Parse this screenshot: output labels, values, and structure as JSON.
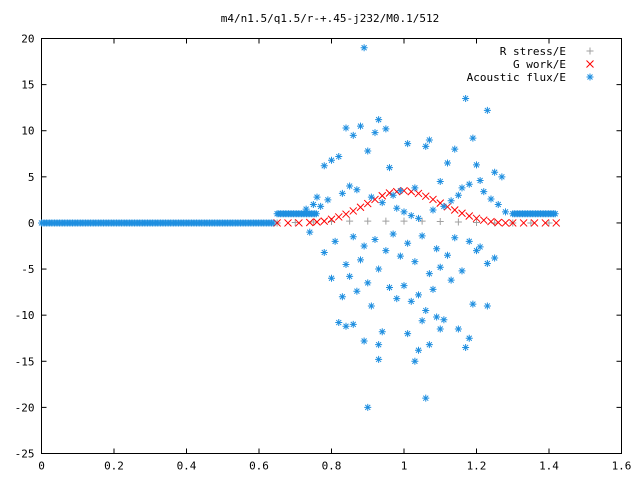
{
  "chart_data": {
    "type": "scatter",
    "title": "m4/n1.5/q1.5/r-+.45-j232/M0.1/512",
    "xlabel": "",
    "ylabel": "",
    "xlim": [
      0,
      1.6
    ],
    "ylim": [
      -25,
      20
    ],
    "xticks": [
      "0",
      "0.2",
      "0.4",
      "0.6",
      "0.8",
      "1",
      "1.2",
      "1.4",
      "1.6"
    ],
    "yticks": [
      "20",
      "15",
      "10",
      "5",
      "0",
      "-5",
      "-10",
      "-15",
      "-20",
      "-25"
    ],
    "grid": false,
    "legend_position": "top-right",
    "series": [
      {
        "name": "R stress/E",
        "marker": "+",
        "color": "#a0a0a0",
        "x": [
          0.65,
          0.7,
          0.75,
          0.8,
          0.85,
          0.9,
          0.95,
          1.0,
          1.05,
          1.1,
          1.15,
          1.2,
          1.25,
          1.3,
          1.35,
          1.4
        ],
        "y": [
          0.0,
          0.05,
          0.1,
          0.15,
          0.2,
          0.2,
          0.2,
          0.2,
          0.2,
          0.15,
          0.1,
          0.05,
          0.0,
          0.0,
          0.0,
          0.0
        ]
      },
      {
        "name": "G work/E",
        "marker": "x",
        "color": "#ff0000",
        "x": [
          0.65,
          0.68,
          0.71,
          0.74,
          0.76,
          0.78,
          0.8,
          0.82,
          0.84,
          0.86,
          0.88,
          0.9,
          0.92,
          0.94,
          0.96,
          0.98,
          1.0,
          1.02,
          1.04,
          1.06,
          1.08,
          1.1,
          1.12,
          1.14,
          1.16,
          1.18,
          1.2,
          1.22,
          1.24,
          1.26,
          1.28,
          1.3,
          1.33,
          1.36,
          1.39,
          1.42
        ],
        "y": [
          0.0,
          0.0,
          0.0,
          0.05,
          0.1,
          0.2,
          0.4,
          0.65,
          0.95,
          1.3,
          1.7,
          2.1,
          2.55,
          2.95,
          3.25,
          3.4,
          3.5,
          3.4,
          3.2,
          2.9,
          2.55,
          2.15,
          1.75,
          1.4,
          1.05,
          0.75,
          0.5,
          0.3,
          0.15,
          0.05,
          0.0,
          0.0,
          0.0,
          0.0,
          0.0,
          0.0
        ]
      },
      {
        "name": "Acoustic flux/E",
        "marker": "*",
        "color": "#1f8fe0",
        "baseline_left": {
          "x_range": [
            0,
            0.64
          ],
          "y": 0
        },
        "plateau_left": {
          "x_range": [
            0.65,
            0.76
          ],
          "y": 1.0
        },
        "plateau_right": {
          "x_range": [
            1.3,
            1.42
          ],
          "y": 1.0
        },
        "x": [
          0.89,
          1.17,
          1.23,
          0.93,
          0.88,
          0.95,
          0.92,
          0.84,
          0.86,
          1.19,
          1.07,
          1.06,
          1.01,
          1.14,
          0.9,
          0.82,
          0.78,
          0.8,
          0.96,
          1.12,
          1.2,
          1.25,
          1.27,
          1.1,
          1.03,
          0.99,
          0.97,
          0.85,
          0.76,
          0.75,
          0.73,
          0.77,
          0.79,
          0.83,
          0.87,
          0.91,
          0.94,
          0.98,
          1.0,
          1.02,
          1.04,
          1.08,
          1.11,
          1.13,
          1.15,
          1.16,
          1.18,
          1.21,
          1.22,
          1.24,
          1.26,
          1.28,
          0.74,
          0.81,
          0.86,
          0.89,
          0.92,
          0.95,
          0.97,
          1.01,
          1.05,
          1.09,
          1.12,
          1.14,
          1.18,
          1.21,
          1.25,
          0.78,
          0.84,
          0.88,
          0.93,
          0.99,
          1.03,
          1.07,
          1.1,
          1.16,
          1.2,
          1.23,
          0.8,
          0.85,
          0.9,
          0.96,
          1.0,
          1.04,
          1.08,
          1.13,
          1.19,
          0.83,
          0.87,
          0.91,
          0.98,
          1.02,
          1.06,
          1.11,
          1.15,
          0.82,
          0.86,
          0.94,
          1.01,
          1.05,
          1.09,
          1.18,
          0.84,
          0.89,
          0.93,
          1.03,
          1.07,
          1.17,
          1.06,
          0.9,
          0.93,
          1.04,
          1.1,
          1.23
        ],
        "y": [
          19.0,
          13.5,
          12.2,
          11.2,
          10.5,
          10.2,
          9.8,
          10.3,
          9.5,
          9.2,
          9.0,
          8.3,
          8.6,
          8.0,
          7.8,
          7.2,
          6.2,
          6.8,
          6.0,
          6.5,
          6.3,
          5.5,
          5.0,
          4.5,
          3.8,
          3.5,
          3.0,
          4.0,
          2.8,
          2.0,
          1.5,
          1.8,
          2.5,
          3.2,
          3.6,
          2.8,
          2.2,
          1.6,
          1.2,
          0.8,
          0.5,
          1.4,
          1.8,
          2.4,
          3.0,
          3.8,
          4.2,
          4.6,
          3.4,
          2.6,
          2.0,
          1.2,
          -1.0,
          -2.0,
          -1.5,
          -2.5,
          -1.8,
          -3.0,
          -1.2,
          -2.2,
          -1.4,
          -2.8,
          -3.5,
          -1.6,
          -2.0,
          -2.6,
          -3.8,
          -3.2,
          -4.5,
          -4.0,
          -5.0,
          -3.6,
          -4.2,
          -5.5,
          -4.8,
          -5.2,
          -3.0,
          -4.4,
          -6.0,
          -5.8,
          -6.5,
          -7.0,
          -6.8,
          -7.8,
          -7.2,
          -6.2,
          -8.8,
          -8.0,
          -7.4,
          -9.0,
          -8.2,
          -8.5,
          -9.5,
          -10.5,
          -11.5,
          -10.8,
          -11.0,
          -11.8,
          -12.0,
          -10.6,
          -10.2,
          -12.5,
          -11.2,
          -12.8,
          -13.2,
          -15.0,
          -13.2,
          -13.5,
          -19.0,
          -20.0,
          -14.8,
          -13.8,
          -11.5,
          -9.0
        ]
      }
    ]
  }
}
